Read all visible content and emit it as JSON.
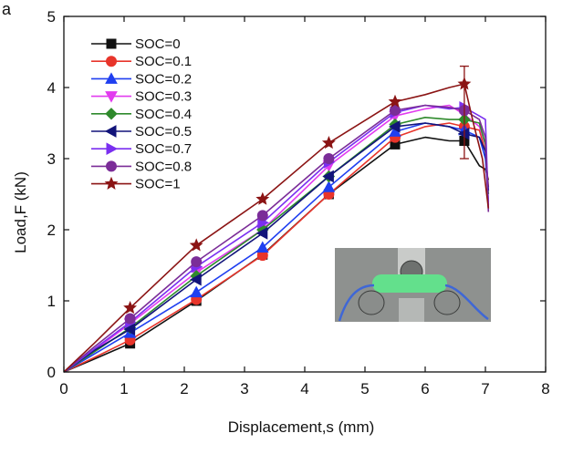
{
  "panel_label": "a",
  "colors": {
    "SOC=0": "#111111",
    "SOC=0.1": "#e8352b",
    "SOC=0.2": "#1f3ff0",
    "SOC=0.3": "#e23bef",
    "SOC=0.4": "#2f8a2c",
    "SOC=0.5": "#12147a",
    "SOC=0.7": "#7a2ff0",
    "SOC=0.8": "#7b2d98",
    "SOC=1": "#8b1414"
  },
  "inset": {
    "icon": "specimen-photo-icon"
  },
  "chart_data": {
    "type": "line",
    "title": "",
    "xlabel": "Displacement,s (mm)",
    "ylabel": "Load,F (kN)",
    "xlim": [
      0,
      8
    ],
    "ylim": [
      0,
      5
    ],
    "xticks": [
      0,
      1,
      2,
      3,
      4,
      5,
      6,
      7,
      8
    ],
    "yticks": [
      0,
      1,
      2,
      3,
      4,
      5
    ],
    "grid": false,
    "legend_position": "top-left",
    "series": [
      {
        "name": "SOC=0",
        "marker": "square",
        "x": [
          0,
          0.5,
          1.1,
          2.2,
          3.3,
          4.4,
          5.5,
          6.0,
          6.4,
          6.65,
          6.9,
          7.0,
          7.05
        ],
        "y": [
          0,
          0.18,
          0.4,
          1.0,
          1.65,
          2.5,
          3.2,
          3.3,
          3.25,
          3.25,
          2.9,
          2.85,
          2.7
        ],
        "marker_x": [
          1.1,
          2.2,
          3.3,
          4.4,
          5.5,
          6.65
        ]
      },
      {
        "name": "SOC=0.1",
        "marker": "circle",
        "x": [
          0,
          0.5,
          1.1,
          2.2,
          3.3,
          4.4,
          5.5,
          6.0,
          6.4,
          6.65,
          6.9,
          7.0,
          7.05
        ],
        "y": [
          0,
          0.2,
          0.45,
          1.02,
          1.64,
          2.5,
          3.3,
          3.45,
          3.5,
          3.45,
          3.4,
          3.1,
          2.6
        ],
        "marker_x": [
          1.1,
          2.2,
          3.3,
          4.4,
          5.5,
          6.65
        ]
      },
      {
        "name": "SOC=0.2",
        "marker": "triangle-up",
        "x": [
          0,
          0.5,
          1.1,
          2.2,
          3.3,
          4.4,
          5.5,
          6.0,
          6.4,
          6.65,
          6.9,
          7.0,
          7.05
        ],
        "y": [
          0,
          0.25,
          0.55,
          1.12,
          1.75,
          2.6,
          3.38,
          3.5,
          3.45,
          3.4,
          3.3,
          3.0,
          2.4
        ],
        "marker_x": [
          1.1,
          2.2,
          3.3,
          4.4,
          5.5,
          6.65
        ]
      },
      {
        "name": "SOC=0.3",
        "marker": "triangle-down",
        "x": [
          0,
          0.5,
          1.1,
          2.2,
          3.3,
          4.4,
          5.5,
          6.0,
          6.4,
          6.65,
          6.9,
          7.0,
          7.05
        ],
        "y": [
          0,
          0.3,
          0.68,
          1.4,
          2.0,
          2.9,
          3.6,
          3.7,
          3.75,
          3.62,
          3.45,
          3.2,
          2.35
        ],
        "marker_x": [
          1.1,
          2.2,
          3.3,
          4.4,
          5.5,
          6.65
        ]
      },
      {
        "name": "SOC=0.4",
        "marker": "diamond",
        "x": [
          0,
          0.5,
          1.1,
          2.2,
          3.3,
          4.4,
          5.5,
          6.0,
          6.4,
          6.65,
          6.9,
          7.0,
          7.05
        ],
        "y": [
          0,
          0.28,
          0.62,
          1.35,
          2.0,
          2.75,
          3.48,
          3.58,
          3.55,
          3.55,
          3.5,
          3.2,
          2.5
        ],
        "marker_x": [
          1.1,
          2.2,
          3.3,
          4.4,
          5.5,
          6.65
        ]
      },
      {
        "name": "SOC=0.5",
        "marker": "triangle-left",
        "x": [
          0,
          0.5,
          1.1,
          2.2,
          3.3,
          4.4,
          5.5,
          6.0,
          6.4,
          6.65,
          6.9,
          7.0,
          7.05
        ],
        "y": [
          0,
          0.3,
          0.6,
          1.3,
          1.95,
          2.75,
          3.45,
          3.5,
          3.45,
          3.35,
          3.3,
          3.1,
          2.55
        ],
        "marker_x": [
          1.1,
          2.2,
          3.3,
          4.4,
          5.5,
          6.65
        ]
      },
      {
        "name": "SOC=0.7",
        "marker": "triangle-right",
        "x": [
          0,
          0.5,
          1.1,
          2.2,
          3.3,
          4.4,
          5.5,
          6.0,
          6.4,
          6.65,
          6.9,
          7.0,
          7.05
        ],
        "y": [
          0,
          0.32,
          0.7,
          1.48,
          2.1,
          2.95,
          3.65,
          3.75,
          3.7,
          3.72,
          3.6,
          3.55,
          2.3
        ],
        "marker_x": [
          1.1,
          2.2,
          3.3,
          4.4,
          5.5,
          6.65
        ]
      },
      {
        "name": "SOC=0.8",
        "marker": "circle",
        "x": [
          0,
          0.5,
          1.1,
          2.2,
          3.3,
          4.4,
          5.5,
          6.0,
          6.4,
          6.65,
          6.9,
          7.0,
          7.05
        ],
        "y": [
          0,
          0.35,
          0.75,
          1.55,
          2.2,
          3.0,
          3.68,
          3.75,
          3.72,
          3.68,
          3.55,
          3.3,
          2.25
        ],
        "marker_x": [
          1.1,
          2.2,
          3.3,
          4.4,
          5.5,
          6.65
        ]
      },
      {
        "name": "SOC=1",
        "marker": "star",
        "x": [
          0,
          0.5,
          1.1,
          2.2,
          3.3,
          4.4,
          5.5,
          6.0,
          6.4,
          6.65,
          6.8,
          6.95,
          7.05
        ],
        "y": [
          0,
          0.4,
          0.9,
          1.78,
          2.43,
          3.22,
          3.8,
          3.9,
          4.0,
          4.05,
          3.5,
          3.0,
          2.3
        ],
        "marker_x": [
          1.1,
          2.2,
          3.3,
          4.4,
          5.5,
          6.65
        ]
      }
    ],
    "error_bars": [
      {
        "x": 6.65,
        "low": 3.0,
        "high": 4.3
      }
    ]
  }
}
